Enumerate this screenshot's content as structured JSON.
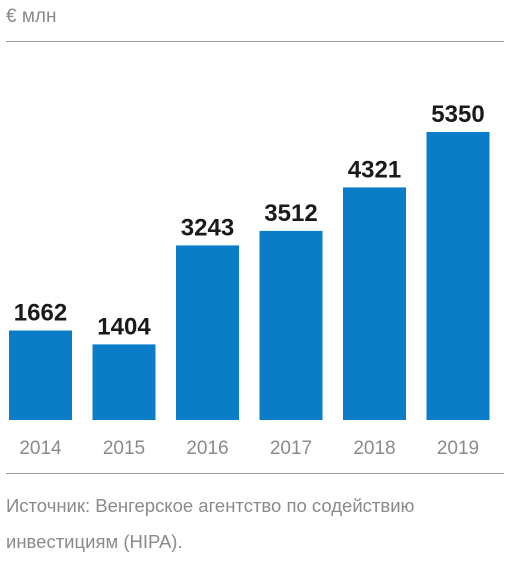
{
  "unit_label": "€ млн",
  "source_text": "Источник: Венгерское агентство по содействию инвестициям (HIPA).",
  "colors": {
    "bar": "#0b7dc8",
    "value_label": "#1a1a1a",
    "tick_label": "#8a8a8a",
    "rule": "#9a9a9a"
  },
  "chart_data": {
    "type": "bar",
    "title": "",
    "xlabel": "",
    "ylabel": "€ млн",
    "categories": [
      "2014",
      "2015",
      "2016",
      "2017",
      "2018",
      "2019"
    ],
    "values": [
      1662,
      1404,
      3243,
      3512,
      4321,
      5350
    ],
    "data_labels": [
      "1662",
      "1404",
      "3243",
      "3512",
      "4321",
      "5350"
    ],
    "ylim": [
      0,
      5350
    ],
    "grid": false,
    "legend": "none"
  }
}
